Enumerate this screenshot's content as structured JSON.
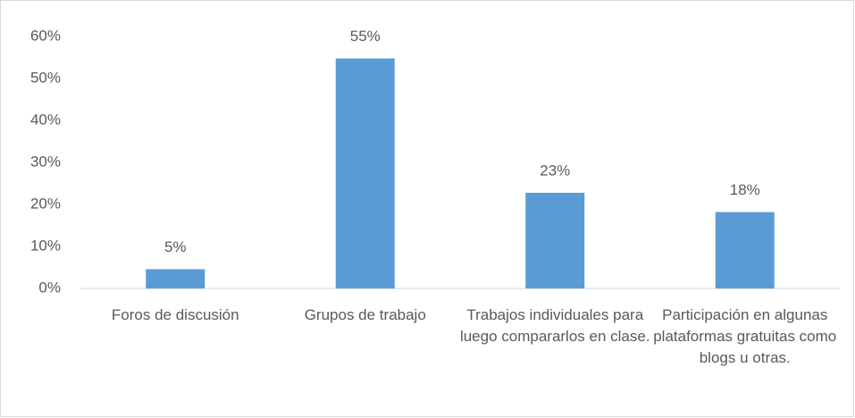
{
  "chart_data": {
    "type": "bar",
    "categories": [
      "Foros de discusión",
      "Grupos de trabajo",
      "Trabajos individuales para luego compararlos en clase.",
      "Participación en algunas plataformas gratuitas como blogs u otras."
    ],
    "values": [
      4.6,
      54.8,
      22.8,
      18.2
    ],
    "value_labels": [
      "5%",
      "55%",
      "23%",
      "18%"
    ],
    "color": "#5b9bd5",
    "ylim": [
      0,
      60
    ],
    "yticks": [
      {
        "value": 0,
        "label": "0%"
      },
      {
        "value": 10,
        "label": "10%"
      },
      {
        "value": 20,
        "label": "20%"
      },
      {
        "value": 30,
        "label": "30%"
      },
      {
        "value": 40,
        "label": "40%"
      },
      {
        "value": 50,
        "label": "50%"
      },
      {
        "value": 60,
        "label": "60%"
      }
    ],
    "grid": false
  }
}
